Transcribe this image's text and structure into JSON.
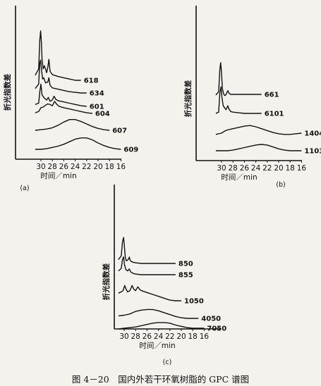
{
  "chart_data": [
    {
      "type": "line",
      "panel_label": "(a)",
      "ylabel": "折光指数差",
      "xlabel": "时间／min",
      "x_ticks": [
        "30",
        "28",
        "26",
        "24",
        "22",
        "20",
        "18",
        "16"
      ],
      "xlim": [
        31,
        15
      ],
      "series": [
        {
          "name": "618",
          "points": [
            [
              31,
              0.3
            ],
            [
              30.4,
              0.4
            ],
            [
              30.2,
              0.85
            ],
            [
              30.05,
              1.0
            ],
            [
              29.9,
              0.8
            ],
            [
              29.8,
              0.55
            ],
            [
              29.6,
              0.4
            ],
            [
              29.4,
              0.45
            ],
            [
              29.2,
              0.4
            ],
            [
              29.0,
              0.34
            ],
            [
              28.8,
              0.42
            ],
            [
              28.6,
              0.55
            ],
            [
              28.4,
              0.36
            ],
            [
              28.0,
              0.31
            ],
            [
              27.0,
              0.28
            ],
            [
              26.0,
              0.26
            ],
            [
              25.0,
              0.24
            ],
            [
              24.0,
              0.22
            ],
            [
              23.0,
              0.22
            ]
          ]
        },
        {
          "name": "634",
          "points": [
            [
              31,
              0.25
            ],
            [
              30.4,
              0.32
            ],
            [
              30.2,
              0.65
            ],
            [
              30.05,
              0.7
            ],
            [
              29.9,
              0.55
            ],
            [
              29.7,
              0.4
            ],
            [
              29.5,
              0.42
            ],
            [
              29.2,
              0.34
            ],
            [
              28.8,
              0.35
            ],
            [
              28.6,
              0.42
            ],
            [
              28.4,
              0.3
            ],
            [
              28.0,
              0.26
            ],
            [
              27.0,
              0.24
            ],
            [
              26.0,
              0.22
            ],
            [
              25.0,
              0.2
            ],
            [
              24.0,
              0.19
            ],
            [
              23.0,
              0.18
            ],
            [
              22.0,
              0.18
            ]
          ]
        },
        {
          "name": "601",
          "points": [
            [
              31,
              0.2
            ],
            [
              30.4,
              0.22
            ],
            [
              30.2,
              0.4
            ],
            [
              30.0,
              0.52
            ],
            [
              29.8,
              0.35
            ],
            [
              29.4,
              0.3
            ],
            [
              29.0,
              0.27
            ],
            [
              28.7,
              0.31
            ],
            [
              28.4,
              0.25
            ],
            [
              28.0,
              0.27
            ],
            [
              27.7,
              0.33
            ],
            [
              27.4,
              0.28
            ],
            [
              27.0,
              0.26
            ],
            [
              26.0,
              0.24
            ],
            [
              25.0,
              0.22
            ],
            [
              24.0,
              0.2
            ],
            [
              23.0,
              0.18
            ],
            [
              22.0,
              0.17
            ]
          ]
        },
        {
          "name": "604",
          "points": [
            [
              31,
              0.16
            ],
            [
              30.4,
              0.18
            ],
            [
              30.0,
              0.24
            ],
            [
              29.6,
              0.25
            ],
            [
              29.2,
              0.28
            ],
            [
              28.8,
              0.3
            ],
            [
              28.4,
              0.29
            ],
            [
              28.0,
              0.27
            ],
            [
              27.6,
              0.34
            ],
            [
              27.2,
              0.29
            ],
            [
              26.8,
              0.26
            ],
            [
              26.0,
              0.24
            ],
            [
              25.0,
              0.22
            ],
            [
              24.0,
              0.2
            ],
            [
              23.0,
              0.18
            ],
            [
              22.0,
              0.16
            ],
            [
              21.0,
              0.15
            ]
          ]
        },
        {
          "name": "607",
          "points": [
            [
              31,
              0.11
            ],
            [
              30.0,
              0.12
            ],
            [
              29.0,
              0.13
            ],
            [
              28.0,
              0.15
            ],
            [
              27.0,
              0.19
            ],
            [
              26.0,
              0.24
            ],
            [
              25.0,
              0.28
            ],
            [
              24.0,
              0.28
            ],
            [
              23.0,
              0.25
            ],
            [
              22.0,
              0.21
            ],
            [
              21.0,
              0.17
            ],
            [
              20.0,
              0.14
            ],
            [
              19.0,
              0.12
            ],
            [
              18.0,
              0.11
            ]
          ]
        },
        {
          "name": "609",
          "points": [
            [
              31,
              0.04
            ],
            [
              30.0,
              0.04
            ],
            [
              29.0,
              0.05
            ],
            [
              28.0,
              0.07
            ],
            [
              27.0,
              0.09
            ],
            [
              26.0,
              0.12
            ],
            [
              25.0,
              0.16
            ],
            [
              24.0,
              0.2
            ],
            [
              23.0,
              0.22
            ],
            [
              22.0,
              0.22
            ],
            [
              21.0,
              0.19
            ],
            [
              20.0,
              0.14
            ],
            [
              19.0,
              0.1
            ],
            [
              18.0,
              0.07
            ],
            [
              17.0,
              0.05
            ],
            [
              16.0,
              0.04
            ]
          ]
        }
      ]
    },
    {
      "type": "line",
      "panel_label": "(b)",
      "ylabel": "折光指数差",
      "xlabel": "时间／min",
      "x_ticks": [
        "30",
        "28",
        "26",
        "24",
        "22",
        "20",
        "18",
        "16"
      ],
      "xlim": [
        31,
        15
      ],
      "series": [
        {
          "name": "661",
          "points": [
            [
              31,
              0.45
            ],
            [
              30.5,
              0.5
            ],
            [
              30.3,
              0.85
            ],
            [
              30.15,
              0.96
            ],
            [
              30.0,
              0.8
            ],
            [
              29.85,
              0.55
            ],
            [
              29.6,
              0.46
            ],
            [
              29.4,
              0.44
            ],
            [
              29.2,
              0.46
            ],
            [
              28.9,
              0.52
            ],
            [
              28.7,
              0.48
            ],
            [
              28.4,
              0.46
            ],
            [
              28.0,
              0.46
            ],
            [
              27.0,
              0.46
            ],
            [
              26.0,
              0.46
            ],
            [
              25.0,
              0.46
            ],
            [
              24.0,
              0.46
            ],
            [
              23.0,
              0.46
            ]
          ]
        },
        {
          "name": "6101",
          "points": [
            [
              31,
              0.28
            ],
            [
              30.5,
              0.3
            ],
            [
              30.3,
              0.6
            ],
            [
              30.1,
              0.7
            ],
            [
              29.95,
              0.55
            ],
            [
              29.7,
              0.4
            ],
            [
              29.4,
              0.36
            ],
            [
              29.2,
              0.34
            ],
            [
              28.9,
              0.4
            ],
            [
              28.7,
              0.35
            ],
            [
              28.4,
              0.31
            ],
            [
              28.0,
              0.3
            ],
            [
              27.0,
              0.29
            ],
            [
              26.0,
              0.28
            ],
            [
              25.0,
              0.28
            ],
            [
              24.0,
              0.28
            ],
            [
              23.0,
              0.28
            ]
          ]
        },
        {
          "name": "1404",
          "points": [
            [
              31,
              0.1
            ],
            [
              30.0,
              0.12
            ],
            [
              29.5,
              0.15
            ],
            [
              29.0,
              0.17
            ],
            [
              28.0,
              0.19
            ],
            [
              27.0,
              0.21
            ],
            [
              26.0,
              0.23
            ],
            [
              25.0,
              0.24
            ],
            [
              24.0,
              0.22
            ],
            [
              23.0,
              0.19
            ],
            [
              22.0,
              0.16
            ],
            [
              21.0,
              0.13
            ],
            [
              20.0,
              0.11
            ],
            [
              19.0,
              0.1
            ],
            [
              18.0,
              0.1
            ],
            [
              17.0,
              0.11
            ],
            [
              16.0,
              0.12
            ]
          ]
        },
        {
          "name": "1103",
          "points": [
            [
              31,
              0.05
            ],
            [
              29.0,
              0.05
            ],
            [
              28.0,
              0.06
            ],
            [
              27.0,
              0.08
            ],
            [
              26.0,
              0.1
            ],
            [
              25.0,
              0.12
            ],
            [
              24.0,
              0.14
            ],
            [
              23.0,
              0.15
            ],
            [
              22.0,
              0.14
            ],
            [
              21.0,
              0.11
            ],
            [
              20.0,
              0.08
            ],
            [
              19.0,
              0.06
            ],
            [
              18.0,
              0.05
            ],
            [
              17.0,
              0.05
            ],
            [
              16.0,
              0.05
            ]
          ]
        }
      ]
    },
    {
      "type": "line",
      "panel_label": "(c)",
      "ylabel": "折光指数差",
      "xlabel": "时间／min",
      "x_ticks": [
        "30",
        "28",
        "26",
        "24",
        "22",
        "20",
        "18",
        "16"
      ],
      "xlim": [
        31,
        15
      ],
      "series": [
        {
          "name": "850",
          "points": [
            [
              31,
              0.62
            ],
            [
              30.5,
              0.68
            ],
            [
              30.3,
              0.9
            ],
            [
              30.1,
              0.97
            ],
            [
              29.95,
              0.82
            ],
            [
              29.8,
              0.65
            ],
            [
              29.6,
              0.6
            ],
            [
              29.3,
              0.62
            ],
            [
              29.1,
              0.66
            ],
            [
              28.9,
              0.6
            ],
            [
              28.5,
              0.58
            ],
            [
              28.0,
              0.57
            ],
            [
              27.0,
              0.56
            ],
            [
              26.0,
              0.56
            ],
            [
              25.0,
              0.56
            ],
            [
              24.0,
              0.56
            ],
            [
              23.0,
              0.56
            ],
            [
              22.0,
              0.56
            ],
            [
              21.0,
              0.56
            ]
          ]
        },
        {
          "name": "855",
          "points": [
            [
              31,
              0.52
            ],
            [
              30.5,
              0.56
            ],
            [
              30.3,
              0.7
            ],
            [
              30.1,
              0.74
            ],
            [
              29.95,
              0.62
            ],
            [
              29.7,
              0.54
            ],
            [
              29.4,
              0.52
            ],
            [
              29.1,
              0.55
            ],
            [
              28.8,
              0.5
            ],
            [
              28.4,
              0.48
            ],
            [
              28.0,
              0.47
            ],
            [
              27.0,
              0.46
            ],
            [
              26.0,
              0.46
            ],
            [
              25.0,
              0.46
            ],
            [
              24.0,
              0.46
            ],
            [
              23.0,
              0.46
            ],
            [
              22.0,
              0.46
            ],
            [
              21.0,
              0.46
            ]
          ]
        },
        {
          "name": "1050",
          "points": [
            [
              31,
              0.26
            ],
            [
              30.5,
              0.28
            ],
            [
              30.2,
              0.3
            ],
            [
              29.9,
              0.38
            ],
            [
              29.7,
              0.33
            ],
            [
              29.4,
              0.28
            ],
            [
              29.0,
              0.3
            ],
            [
              28.6,
              0.38
            ],
            [
              28.3,
              0.32
            ],
            [
              28.0,
              0.3
            ],
            [
              27.6,
              0.36
            ],
            [
              27.3,
              0.32
            ],
            [
              27.0,
              0.3
            ],
            [
              26.0,
              0.27
            ],
            [
              25.0,
              0.24
            ],
            [
              24.0,
              0.21
            ],
            [
              23.0,
              0.18
            ],
            [
              22.0,
              0.15
            ],
            [
              21.0,
              0.14
            ],
            [
              20.0,
              0.14
            ]
          ]
        },
        {
          "name": "4050",
          "points": [
            [
              31,
              0.12
            ],
            [
              30.0,
              0.13
            ],
            [
              29.0,
              0.15
            ],
            [
              28.5,
              0.17
            ],
            [
              28.0,
              0.19
            ],
            [
              27.0,
              0.21
            ],
            [
              26.0,
              0.22
            ],
            [
              25.0,
              0.22
            ],
            [
              24.0,
              0.2
            ],
            [
              23.0,
              0.17
            ],
            [
              22.0,
              0.14
            ],
            [
              21.0,
              0.11
            ],
            [
              20.0,
              0.09
            ],
            [
              19.0,
              0.08
            ],
            [
              18.0,
              0.08
            ],
            [
              17.0,
              0.08
            ]
          ]
        },
        {
          "name": "7050",
          "points": [
            [
              31,
              0.04
            ],
            [
              30.0,
              0.05
            ],
            [
              29.0,
              0.06
            ],
            [
              28.0,
              0.07
            ],
            [
              27.0,
              0.09
            ],
            [
              26.0,
              0.11
            ],
            [
              25.0,
              0.13
            ],
            [
              24.0,
              0.14
            ],
            [
              23.0,
              0.14
            ],
            [
              22.0,
              0.13
            ],
            [
              21.0,
              0.1
            ],
            [
              20.0,
              0.08
            ],
            [
              19.0,
              0.06
            ],
            [
              18.0,
              0.05
            ],
            [
              17.0,
              0.05
            ],
            [
              16.0,
              0.05
            ]
          ]
        }
      ]
    }
  ],
  "caption": "图 4－20　国内外若干环氧树脂的 GPC 谱图"
}
